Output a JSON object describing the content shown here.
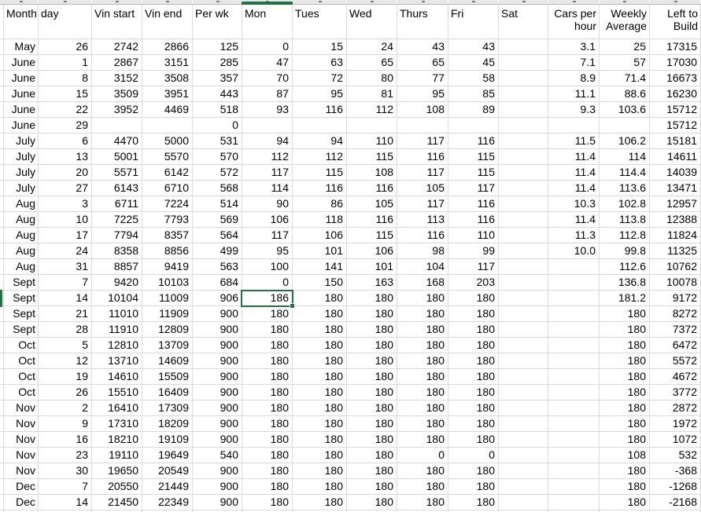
{
  "sheet": {
    "columns": [
      {
        "key": "month",
        "label": "Month",
        "align": "left"
      },
      {
        "key": "day",
        "label": "day",
        "align": "left"
      },
      {
        "key": "vin-start",
        "label": "Vin start",
        "align": "left"
      },
      {
        "key": "vin-end",
        "label": "Vin end",
        "align": "left"
      },
      {
        "key": "per-wk",
        "label": "Per wk",
        "align": "left"
      },
      {
        "key": "mon",
        "label": "Mon",
        "align": "left"
      },
      {
        "key": "tues",
        "label": "Tues",
        "align": "left"
      },
      {
        "key": "wed",
        "label": "Wed",
        "align": "left"
      },
      {
        "key": "thurs",
        "label": "Thurs",
        "align": "left"
      },
      {
        "key": "fri",
        "label": "Fri",
        "align": "left"
      },
      {
        "key": "sat",
        "label": "Sat",
        "align": "left"
      },
      {
        "key": "cars-per-hour",
        "label": "Cars per hour",
        "lines": [
          "Cars per",
          "hour"
        ],
        "align": "right"
      },
      {
        "key": "weekly-average",
        "label": "Weekly Average",
        "lines": [
          "Weekly",
          "Average"
        ],
        "align": "right"
      },
      {
        "key": "left-to-build",
        "label": "Left to Build",
        "lines": [
          "Left to",
          "Build"
        ],
        "align": "right"
      }
    ],
    "rows": [
      [
        "May",
        "26",
        "2742",
        "2866",
        "125",
        "0",
        "15",
        "24",
        "43",
        "43",
        "",
        "3.1",
        "25",
        "17315"
      ],
      [
        "June",
        "1",
        "2867",
        "3151",
        "285",
        "47",
        "63",
        "65",
        "65",
        "45",
        "",
        "7.1",
        "57",
        "17030"
      ],
      [
        "June",
        "8",
        "3152",
        "3508",
        "357",
        "70",
        "72",
        "80",
        "77",
        "58",
        "",
        "8.9",
        "71.4",
        "16673"
      ],
      [
        "June",
        "15",
        "3509",
        "3951",
        "443",
        "87",
        "95",
        "81",
        "95",
        "85",
        "",
        "11.1",
        "88.6",
        "16230"
      ],
      [
        "June",
        "22",
        "3952",
        "4469",
        "518",
        "93",
        "116",
        "112",
        "108",
        "89",
        "",
        "9.3",
        "103.6",
        "15712"
      ],
      [
        "June",
        "29",
        "",
        "",
        "0",
        "",
        "",
        "",
        "",
        "",
        "",
        "",
        "",
        "15712"
      ],
      [
        "July",
        "6",
        "4470",
        "5000",
        "531",
        "94",
        "94",
        "110",
        "117",
        "116",
        "",
        "11.5",
        "106.2",
        "15181"
      ],
      [
        "July",
        "13",
        "5001",
        "5570",
        "570",
        "112",
        "112",
        "115",
        "116",
        "115",
        "",
        "11.4",
        "114",
        "14611"
      ],
      [
        "July",
        "20",
        "5571",
        "6142",
        "572",
        "117",
        "115",
        "108",
        "117",
        "115",
        "",
        "11.4",
        "114.4",
        "14039"
      ],
      [
        "July",
        "27",
        "6143",
        "6710",
        "568",
        "114",
        "116",
        "116",
        "105",
        "117",
        "",
        "11.4",
        "113.6",
        "13471"
      ],
      [
        "Aug",
        "3",
        "6711",
        "7224",
        "514",
        "90",
        "86",
        "105",
        "117",
        "116",
        "",
        "10.3",
        "102.8",
        "12957"
      ],
      [
        "Aug",
        "10",
        "7225",
        "7793",
        "569",
        "106",
        "118",
        "116",
        "113",
        "116",
        "",
        "11.4",
        "113.8",
        "12388"
      ],
      [
        "Aug",
        "17",
        "7794",
        "8357",
        "564",
        "117",
        "106",
        "115",
        "116",
        "110",
        "",
        "11.3",
        "112.8",
        "11824"
      ],
      [
        "Aug",
        "24",
        "8358",
        "8856",
        "499",
        "95",
        "101",
        "106",
        "98",
        "99",
        "",
        "10.0",
        "99.8",
        "11325"
      ],
      [
        "Aug",
        "31",
        "8857",
        "9419",
        "563",
        "100",
        "141",
        "101",
        "104",
        "117",
        "",
        "",
        "112.6",
        "10762"
      ],
      [
        "Sept",
        "7",
        "9420",
        "10103",
        "684",
        "0",
        "150",
        "163",
        "168",
        "203",
        "",
        "",
        "136.8",
        "10078"
      ],
      [
        "Sept",
        "14",
        "10104",
        "11009",
        "906",
        "186",
        "180",
        "180",
        "180",
        "180",
        "",
        "",
        "181.2",
        "9172"
      ],
      [
        "Sept",
        "21",
        "11010",
        "11909",
        "900",
        "180",
        "180",
        "180",
        "180",
        "180",
        "",
        "",
        "180",
        "8272"
      ],
      [
        "Sept",
        "28",
        "11910",
        "12809",
        "900",
        "180",
        "180",
        "180",
        "180",
        "180",
        "",
        "",
        "180",
        "7372"
      ],
      [
        "Oct",
        "5",
        "12810",
        "13709",
        "900",
        "180",
        "180",
        "180",
        "180",
        "180",
        "",
        "",
        "180",
        "6472"
      ],
      [
        "Oct",
        "12",
        "13710",
        "14609",
        "900",
        "180",
        "180",
        "180",
        "180",
        "180",
        "",
        "",
        "180",
        "5572"
      ],
      [
        "Oct",
        "19",
        "14610",
        "15509",
        "900",
        "180",
        "180",
        "180",
        "180",
        "180",
        "",
        "",
        "180",
        "4672"
      ],
      [
        "Oct",
        "26",
        "15510",
        "16409",
        "900",
        "180",
        "180",
        "180",
        "180",
        "180",
        "",
        "",
        "180",
        "3772"
      ],
      [
        "Nov",
        "2",
        "16410",
        "17309",
        "900",
        "180",
        "180",
        "180",
        "180",
        "180",
        "",
        "",
        "180",
        "2872"
      ],
      [
        "Nov",
        "9",
        "17310",
        "18209",
        "900",
        "180",
        "180",
        "180",
        "180",
        "180",
        "",
        "",
        "180",
        "1972"
      ],
      [
        "Nov",
        "16",
        "18210",
        "19109",
        "900",
        "180",
        "180",
        "180",
        "180",
        "180",
        "",
        "",
        "180",
        "1072"
      ],
      [
        "Nov",
        "23",
        "19110",
        "19649",
        "540",
        "180",
        "180",
        "180",
        "0",
        "0",
        "",
        "",
        "108",
        "532"
      ],
      [
        "Nov",
        "30",
        "19650",
        "20549",
        "900",
        "180",
        "180",
        "180",
        "180",
        "180",
        "",
        "",
        "180",
        "-368"
      ],
      [
        "Dec",
        "7",
        "20550",
        "21449",
        "900",
        "180",
        "180",
        "180",
        "180",
        "180",
        "",
        "",
        "180",
        "-1268"
      ],
      [
        "Dec",
        "14",
        "21450",
        "22349",
        "900",
        "180",
        "180",
        "180",
        "180",
        "180",
        "",
        "",
        "180",
        "-2168"
      ]
    ],
    "selection": {
      "month": "Sept",
      "day": "14",
      "column": "Mon",
      "value": "186",
      "row_index": 16,
      "col_index": 5
    },
    "colors": {
      "selection_green": "#217346",
      "gridline": "#d9d9d9",
      "header_strip_bg": "#e8e8e8"
    }
  }
}
